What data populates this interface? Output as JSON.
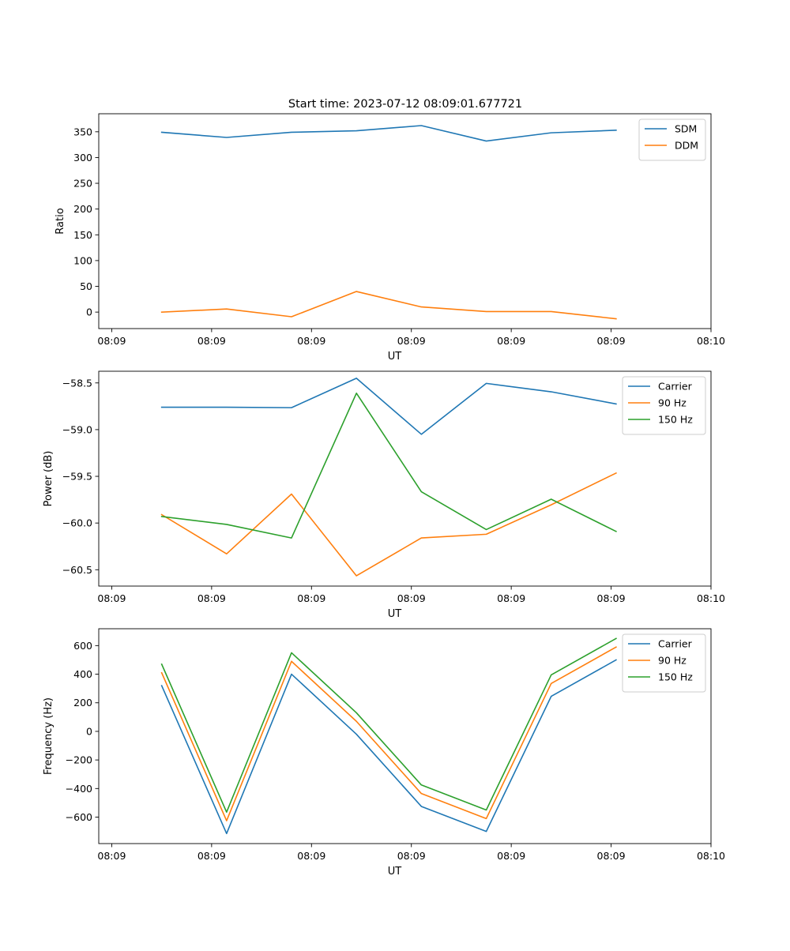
{
  "figure_title": "Start time: 2023-07-12 08:09:01.677721",
  "chart_data": [
    {
      "type": "line",
      "title": "Start time: 2023-07-12 08:09:01.677721",
      "xlabel": "UT",
      "ylabel": "Ratio",
      "x": [
        0.5,
        1.15,
        1.8,
        2.45,
        3.1,
        3.75,
        4.4,
        5.05
      ],
      "xlim": [
        -0.13,
        6.0
      ],
      "xticks": [
        0,
        1,
        2,
        3,
        4,
        5,
        6
      ],
      "xtick_labels": [
        "08:09",
        "08:09",
        "08:09",
        "08:09",
        "08:09",
        "08:09",
        "08:10"
      ],
      "ylim": [
        -32,
        385
      ],
      "yticks": [
        0,
        50,
        100,
        150,
        200,
        250,
        300,
        350
      ],
      "ytick_labels": [
        "0",
        "50",
        "100",
        "150",
        "200",
        "250",
        "300",
        "350"
      ],
      "legend_position": "top-right",
      "series": [
        {
          "name": "SDM",
          "color": "#1f77b4",
          "values": [
            349,
            339,
            349,
            352,
            362,
            332,
            348,
            353
          ]
        },
        {
          "name": "DDM",
          "color": "#ff7f0e",
          "values": [
            0,
            6,
            -9,
            40,
            10,
            1,
            1,
            -13
          ]
        }
      ]
    },
    {
      "type": "line",
      "title": "",
      "xlabel": "UT",
      "ylabel": "Power (dB)",
      "x": [
        0.5,
        1.15,
        1.8,
        2.45,
        3.1,
        3.75,
        4.4,
        5.05
      ],
      "xlim": [
        -0.13,
        6.0
      ],
      "xticks": [
        0,
        1,
        2,
        3,
        4,
        5,
        6
      ],
      "xtick_labels": [
        "08:09",
        "08:09",
        "08:09",
        "08:09",
        "08:09",
        "08:09",
        "08:10"
      ],
      "ylim": [
        -60.675,
        -58.375
      ],
      "yticks": [
        -60.5,
        -60.0,
        -59.5,
        -59.0,
        -58.5
      ],
      "ytick_labels": [
        "−60.5",
        "−60.0",
        "−59.5",
        "−59.0",
        "−58.5"
      ],
      "legend_position": "top-right",
      "series": [
        {
          "name": "Carrier",
          "color": "#1f77b4",
          "values": [
            -58.76,
            -58.76,
            -58.765,
            -58.45,
            -59.05,
            -58.505,
            -58.595,
            -58.725
          ]
        },
        {
          "name": "90 Hz",
          "color": "#ff7f0e",
          "values": [
            -59.91,
            -60.33,
            -59.69,
            -60.565,
            -60.16,
            -60.12,
            -59.805,
            -59.465
          ]
        },
        {
          "name": "150 Hz",
          "color": "#2ca02c",
          "values": [
            -59.93,
            -60.015,
            -60.16,
            -58.61,
            -59.665,
            -60.07,
            -59.745,
            -60.09
          ]
        }
      ]
    },
    {
      "type": "line",
      "title": "",
      "xlabel": "UT",
      "ylabel": "Frequency (Hz)",
      "x": [
        0.5,
        1.15,
        1.8,
        2.45,
        3.1,
        3.75,
        4.4,
        5.05
      ],
      "xlim": [
        -0.13,
        6.0
      ],
      "xticks": [
        0,
        1,
        2,
        3,
        4,
        5,
        6
      ],
      "xtick_labels": [
        "08:09",
        "08:09",
        "08:09",
        "08:09",
        "08:09",
        "08:09",
        "08:10"
      ],
      "ylim": [
        -785,
        718
      ],
      "yticks": [
        -600,
        -400,
        -200,
        0,
        200,
        400,
        600
      ],
      "ytick_labels": [
        "−600",
        "−400",
        "−200",
        "0",
        "200",
        "400",
        "600"
      ],
      "legend_position": "top-right",
      "series": [
        {
          "name": "Carrier",
          "color": "#1f77b4",
          "values": [
            320,
            -715,
            400,
            -20,
            -525,
            -700,
            245,
            500
          ]
        },
        {
          "name": "90 Hz",
          "color": "#ff7f0e",
          "values": [
            410,
            -625,
            490,
            70,
            -435,
            -610,
            335,
            590
          ]
        },
        {
          "name": "150 Hz",
          "color": "#2ca02c",
          "values": [
            470,
            -565,
            550,
            130,
            -375,
            -550,
            395,
            650
          ]
        }
      ]
    }
  ]
}
